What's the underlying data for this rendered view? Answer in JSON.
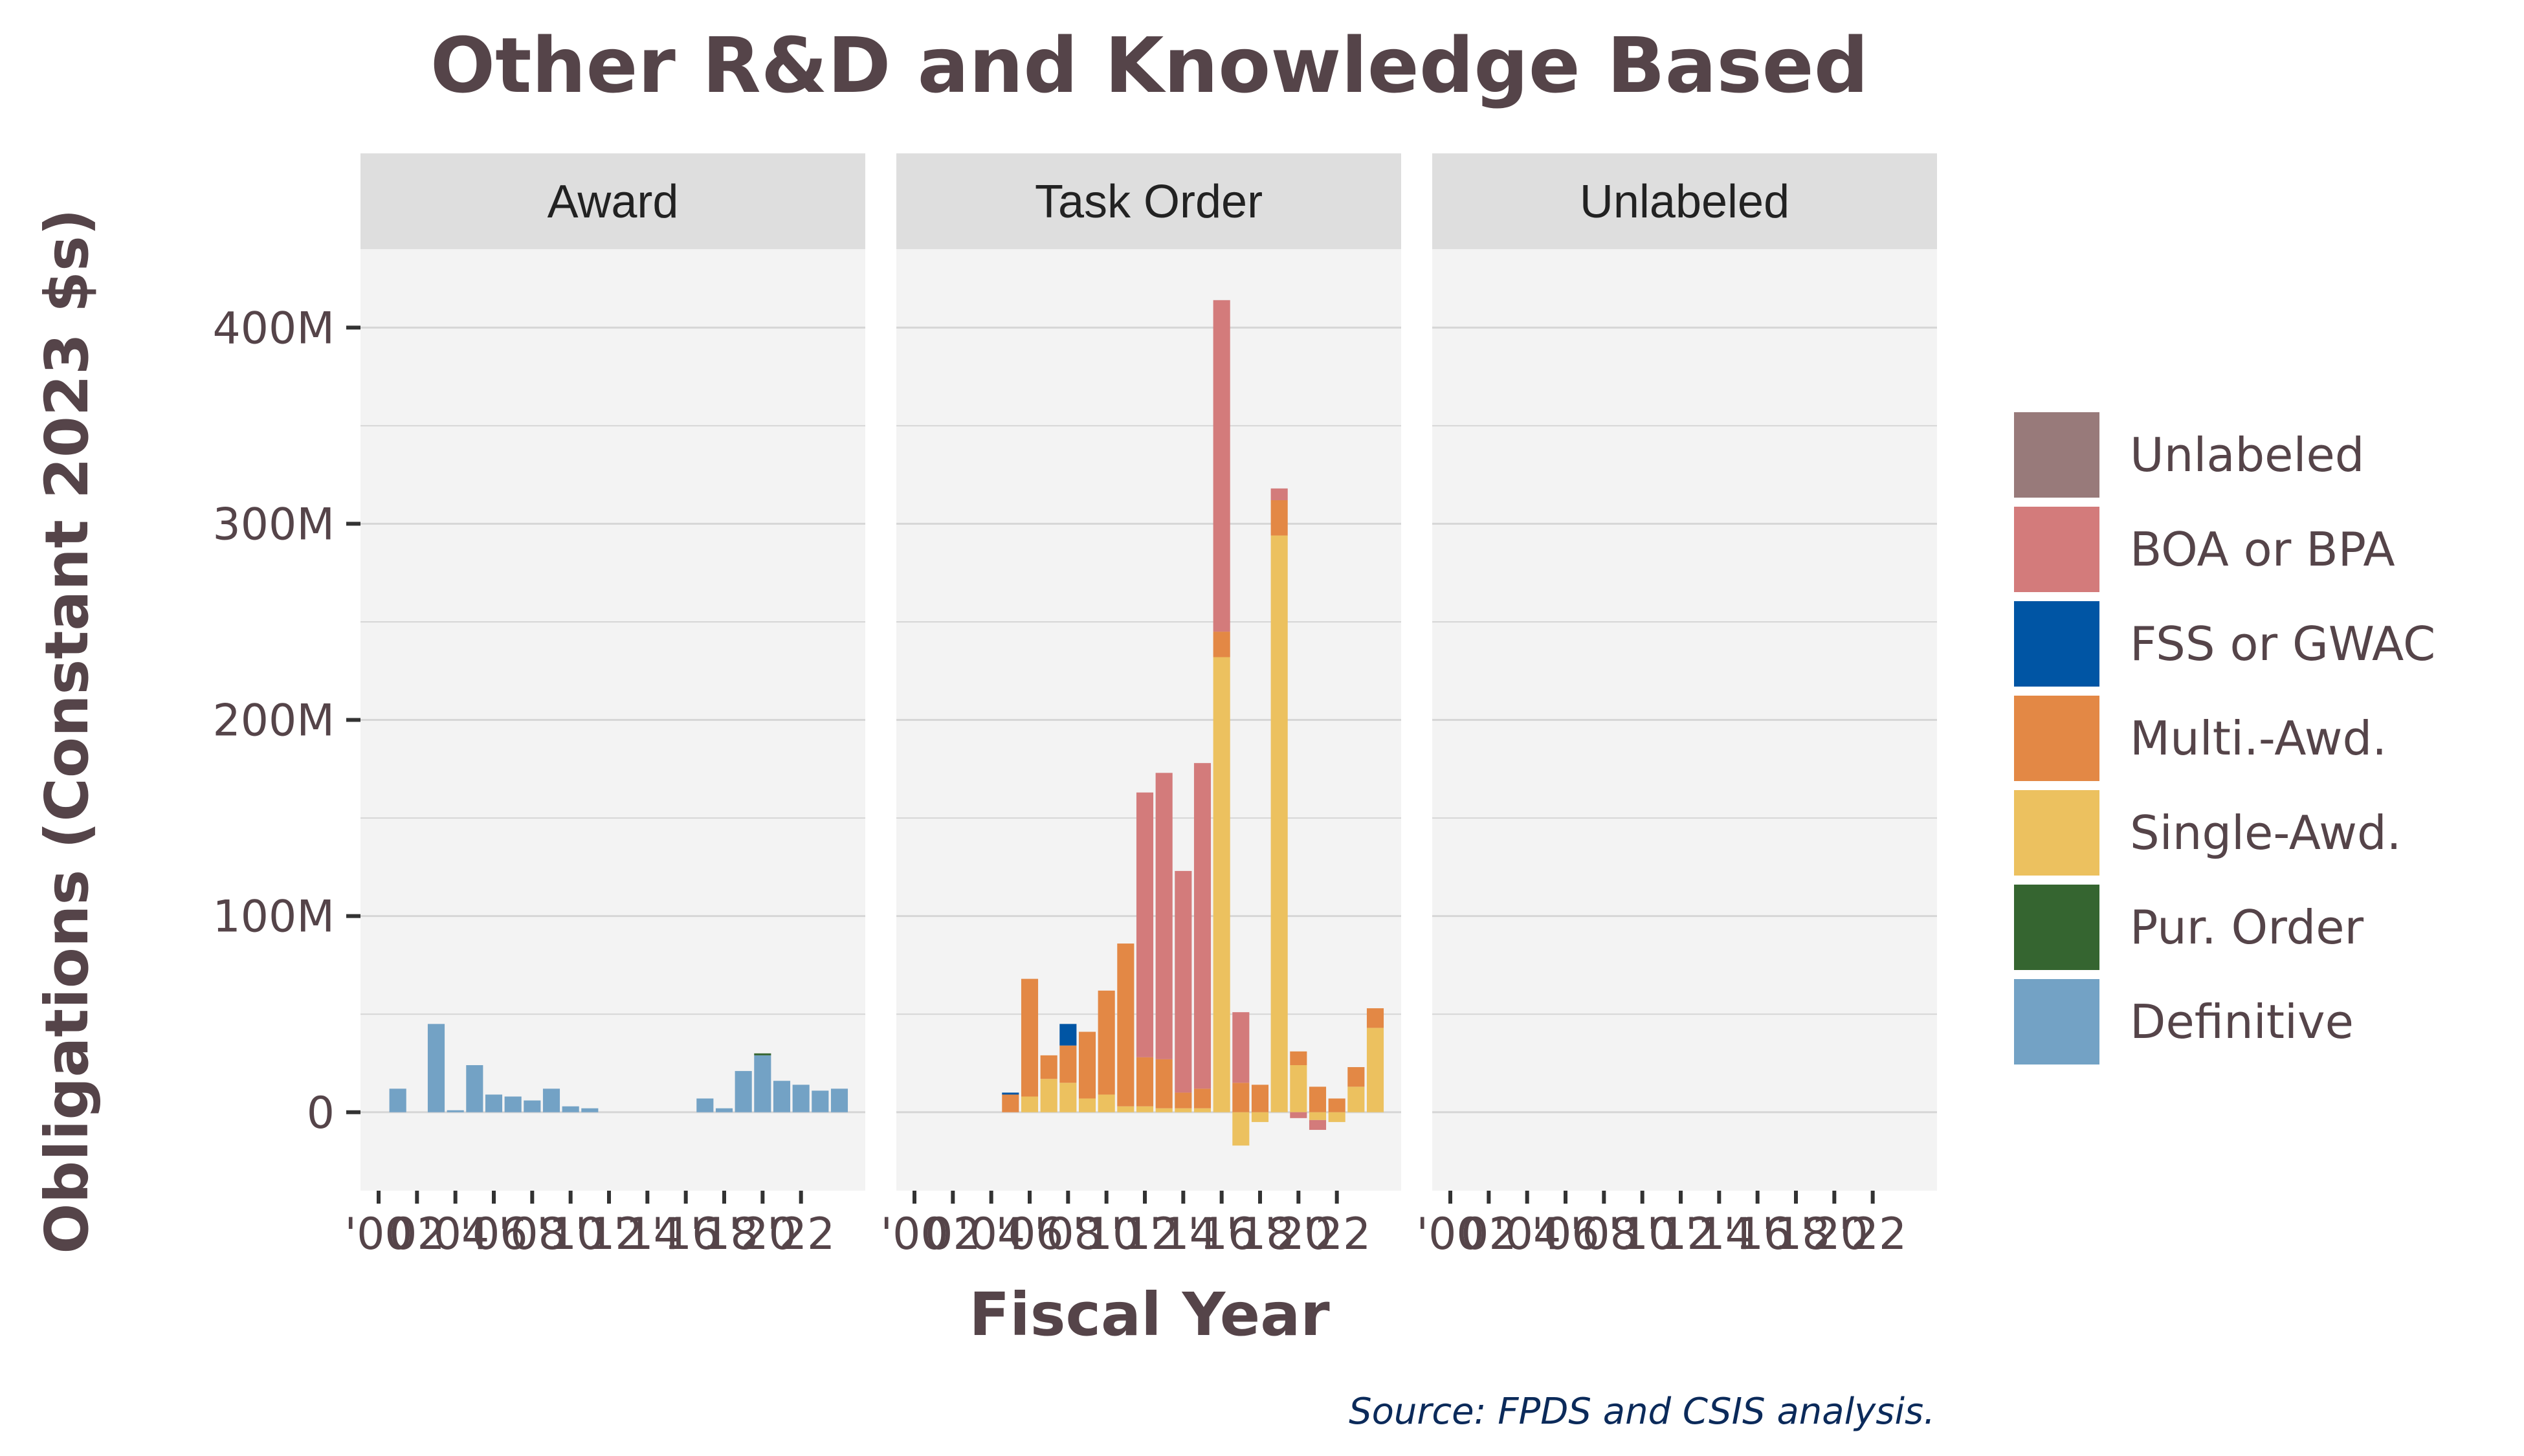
{
  "chart_data": {
    "type": "bar",
    "stacked": true,
    "title": "Other R&D and Knowledge Based",
    "xlabel": "Fiscal Year",
    "ylabel": "Obligations (Constant 2023 $s)",
    "caption": "Source: FPDS and CSIS analysis.",
    "ylim": [
      -40,
      440
    ],
    "y_ticks": [
      0,
      100,
      200,
      300,
      400
    ],
    "y_tick_labels": [
      "0",
      "100M",
      "200M",
      "300M",
      "400M"
    ],
    "x_ticks": [
      2000,
      2002,
      2004,
      2006,
      2008,
      2010,
      2012,
      2014,
      2016,
      2018,
      2020,
      2022
    ],
    "x_tick_labels": [
      "'00",
      "02",
      "'04",
      "'06",
      "'08",
      "'10",
      "'12",
      "'14",
      "'16",
      "'18",
      "'20",
      "'22"
    ],
    "x_range": [
      2000,
      2024
    ],
    "grid": true,
    "legend_position": "right",
    "panels": [
      "Award",
      "Task Order",
      "Unlabeled"
    ],
    "series": [
      {
        "name": "Unlabeled",
        "color": "#987a7a"
      },
      {
        "name": "BOA or BPA",
        "color": "#d37b7b"
      },
      {
        "name": "FSS or GWAC",
        "color": "#0055a4"
      },
      {
        "name": "Multi.-Awd.",
        "color": "#e38845"
      },
      {
        "name": "Single-Awd.",
        "color": "#ecc15f"
      },
      {
        "name": "Pur. Order",
        "color": "#356530"
      },
      {
        "name": "Definitive",
        "color": "#73a2c5"
      }
    ],
    "bars": {
      "Award": [
        {
          "year": 2001,
          "Definitive": 12
        },
        {
          "year": 2003,
          "Definitive": 45
        },
        {
          "year": 2004,
          "Definitive": 1
        },
        {
          "year": 2005,
          "Definitive": 24
        },
        {
          "year": 2006,
          "Definitive": 9
        },
        {
          "year": 2007,
          "Definitive": 8
        },
        {
          "year": 2008,
          "Definitive": 6
        },
        {
          "year": 2009,
          "Definitive": 12
        },
        {
          "year": 2010,
          "Definitive": 3
        },
        {
          "year": 2011,
          "Definitive": 2
        },
        {
          "year": 2017,
          "Definitive": 7
        },
        {
          "year": 2018,
          "Definitive": 2
        },
        {
          "year": 2019,
          "Definitive": 21
        },
        {
          "year": 2020,
          "Definitive": 29,
          "Pur. Order": 1
        },
        {
          "year": 2021,
          "Definitive": 16
        },
        {
          "year": 2022,
          "Definitive": 14
        },
        {
          "year": 2023,
          "Definitive": 11
        },
        {
          "year": 2024,
          "Definitive": 12
        }
      ],
      "Task Order": [
        {
          "year": 2005,
          "Multi.-Awd.": 9,
          "FSS or GWAC": 1
        },
        {
          "year": 2006,
          "Single-Awd.": 8,
          "Multi.-Awd.": 60
        },
        {
          "year": 2007,
          "Single-Awd.": 17,
          "Multi.-Awd.": 12
        },
        {
          "year": 2008,
          "Single-Awd.": 15,
          "Multi.-Awd.": 19,
          "FSS or GWAC": 11
        },
        {
          "year": 2009,
          "Single-Awd.": 7,
          "Multi.-Awd.": 34
        },
        {
          "year": 2010,
          "Single-Awd.": 9,
          "Multi.-Awd.": 53
        },
        {
          "year": 2011,
          "Single-Awd.": 3,
          "Multi.-Awd.": 83
        },
        {
          "year": 2012,
          "Single-Awd.": 3,
          "Multi.-Awd.": 25,
          "BOA or BPA": 135
        },
        {
          "year": 2013,
          "Single-Awd.": 2,
          "Multi.-Awd.": 25,
          "BOA or BPA": 146
        },
        {
          "year": 2014,
          "Single-Awd.": 2,
          "Multi.-Awd.": 8,
          "BOA or BPA": 113
        },
        {
          "year": 2015,
          "Single-Awd.": 2,
          "Multi.-Awd.": 10,
          "BOA or BPA": 166
        },
        {
          "year": 2016,
          "Single-Awd.": 232,
          "Multi.-Awd.": 13,
          "BOA or BPA": 169
        },
        {
          "year": 2017,
          "Single-Awd.": -17,
          "Multi.-Awd.": 15,
          "BOA or BPA": 36
        },
        {
          "year": 2018,
          "Single-Awd.": -5,
          "Multi.-Awd.": 14
        },
        {
          "year": 2019,
          "Single-Awd.": 294,
          "Multi.-Awd.": 18,
          "BOA or BPA": 6
        },
        {
          "year": 2020,
          "Single-Awd.": 24,
          "Multi.-Awd.": 7,
          "BOA or BPA": -3
        },
        {
          "year": 2021,
          "Single-Awd.": -4,
          "Multi.-Awd.": 13,
          "BOA or BPA": -5
        },
        {
          "year": 2022,
          "Single-Awd.": -5,
          "Multi.-Awd.": 7
        },
        {
          "year": 2023,
          "Single-Awd.": 13,
          "Multi.-Awd.": 10
        },
        {
          "year": 2024,
          "Single-Awd.": 43,
          "Multi.-Awd.": 10
        }
      ],
      "Unlabeled": []
    }
  }
}
